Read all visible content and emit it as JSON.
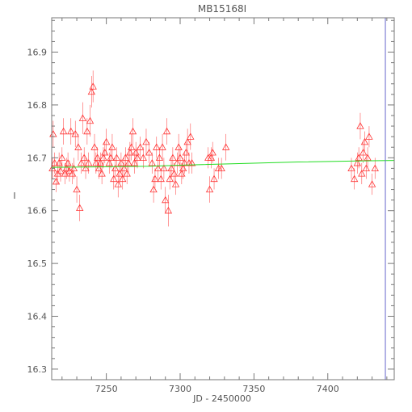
{
  "chart_data": {
    "type": "scatter",
    "title": "MB15168I",
    "xlabel": "JD - 2450000",
    "ylabel": "I",
    "xlim": [
      7213,
      7445
    ],
    "ylim": [
      16.965,
      16.28
    ],
    "y_inverted": true,
    "x_ticks": [
      7250,
      7300,
      7350,
      7400
    ],
    "x_tick_labels": [
      "7250",
      "7300",
      "7350",
      "7400"
    ],
    "y_ticks": [
      16.3,
      16.4,
      16.5,
      16.6,
      16.7,
      16.8,
      16.9
    ],
    "y_tick_labels": [
      "16.3",
      "16.4",
      "16.5",
      "16.6",
      "16.7",
      "16.8",
      "16.9"
    ],
    "grid": false,
    "marker": "triangle",
    "colors": {
      "data": "#ff3333",
      "model": "#22dd22",
      "vline": "#6666cc",
      "axes": "#777777"
    },
    "vertical_line_x": 7439,
    "model_curve": [
      {
        "x": 7213,
        "y": 16.682
      },
      {
        "x": 7250,
        "y": 16.683
      },
      {
        "x": 7280,
        "y": 16.684
      },
      {
        "x": 7300,
        "y": 16.686
      },
      {
        "x": 7340,
        "y": 16.689
      },
      {
        "x": 7380,
        "y": 16.692
      },
      {
        "x": 7420,
        "y": 16.694
      },
      {
        "x": 7445,
        "y": 16.695
      }
    ],
    "points": [
      {
        "x": 7213.5,
        "y": 16.68,
        "err": 0.02
      },
      {
        "x": 7214,
        "y": 16.745,
        "err": 0.025
      },
      {
        "x": 7215,
        "y": 16.69,
        "err": 0.02
      },
      {
        "x": 7216,
        "y": 16.655,
        "err": 0.02
      },
      {
        "x": 7217,
        "y": 16.67,
        "err": 0.02
      },
      {
        "x": 7218,
        "y": 16.69,
        "err": 0.02
      },
      {
        "x": 7219,
        "y": 16.675,
        "err": 0.02
      },
      {
        "x": 7220,
        "y": 16.7,
        "err": 0.02
      },
      {
        "x": 7221,
        "y": 16.75,
        "err": 0.025
      },
      {
        "x": 7222,
        "y": 16.67,
        "err": 0.02
      },
      {
        "x": 7223,
        "y": 16.68,
        "err": 0.02
      },
      {
        "x": 7224,
        "y": 16.69,
        "err": 0.02
      },
      {
        "x": 7225,
        "y": 16.675,
        "err": 0.02
      },
      {
        "x": 7226,
        "y": 16.75,
        "err": 0.025
      },
      {
        "x": 7227,
        "y": 16.67,
        "err": 0.02
      },
      {
        "x": 7228,
        "y": 16.68,
        "err": 0.02
      },
      {
        "x": 7229,
        "y": 16.745,
        "err": 0.025
      },
      {
        "x": 7230,
        "y": 16.64,
        "err": 0.025
      },
      {
        "x": 7231,
        "y": 16.72,
        "err": 0.025
      },
      {
        "x": 7232,
        "y": 16.605,
        "err": 0.025
      },
      {
        "x": 7233,
        "y": 16.69,
        "err": 0.02
      },
      {
        "x": 7234,
        "y": 16.775,
        "err": 0.03
      },
      {
        "x": 7235,
        "y": 16.7,
        "err": 0.02
      },
      {
        "x": 7236,
        "y": 16.68,
        "err": 0.02
      },
      {
        "x": 7237,
        "y": 16.75,
        "err": 0.025
      },
      {
        "x": 7238,
        "y": 16.69,
        "err": 0.02
      },
      {
        "x": 7239,
        "y": 16.77,
        "err": 0.03
      },
      {
        "x": 7240,
        "y": 16.825,
        "err": 0.03
      },
      {
        "x": 7241,
        "y": 16.835,
        "err": 0.03
      },
      {
        "x": 7242,
        "y": 16.72,
        "err": 0.025
      },
      {
        "x": 7243,
        "y": 16.69,
        "err": 0.02
      },
      {
        "x": 7244,
        "y": 16.7,
        "err": 0.02
      },
      {
        "x": 7245,
        "y": 16.68,
        "err": 0.02
      },
      {
        "x": 7246,
        "y": 16.69,
        "err": 0.02
      },
      {
        "x": 7247,
        "y": 16.67,
        "err": 0.02
      },
      {
        "x": 7248,
        "y": 16.7,
        "err": 0.02
      },
      {
        "x": 7249,
        "y": 16.71,
        "err": 0.02
      },
      {
        "x": 7250,
        "y": 16.73,
        "err": 0.025
      },
      {
        "x": 7252,
        "y": 16.69,
        "err": 0.02
      },
      {
        "x": 7253,
        "y": 16.7,
        "err": 0.02
      },
      {
        "x": 7254,
        "y": 16.72,
        "err": 0.025
      },
      {
        "x": 7255,
        "y": 16.66,
        "err": 0.02
      },
      {
        "x": 7256,
        "y": 16.68,
        "err": 0.02
      },
      {
        "x": 7257,
        "y": 16.7,
        "err": 0.02
      },
      {
        "x": 7258,
        "y": 16.65,
        "err": 0.025
      },
      {
        "x": 7259,
        "y": 16.67,
        "err": 0.02
      },
      {
        "x": 7260,
        "y": 16.69,
        "err": 0.02
      },
      {
        "x": 7261,
        "y": 16.66,
        "err": 0.02
      },
      {
        "x": 7262,
        "y": 16.68,
        "err": 0.02
      },
      {
        "x": 7263,
        "y": 16.7,
        "err": 0.02
      },
      {
        "x": 7264,
        "y": 16.67,
        "err": 0.02
      },
      {
        "x": 7265,
        "y": 16.69,
        "err": 0.02
      },
      {
        "x": 7266,
        "y": 16.71,
        "err": 0.02
      },
      {
        "x": 7267,
        "y": 16.72,
        "err": 0.025
      },
      {
        "x": 7268,
        "y": 16.75,
        "err": 0.025
      },
      {
        "x": 7269,
        "y": 16.69,
        "err": 0.02
      },
      {
        "x": 7270,
        "y": 16.71,
        "err": 0.02
      },
      {
        "x": 7271,
        "y": 16.7,
        "err": 0.02
      },
      {
        "x": 7273,
        "y": 16.72,
        "err": 0.02
      },
      {
        "x": 7275,
        "y": 16.7,
        "err": 0.02
      },
      {
        "x": 7277,
        "y": 16.73,
        "err": 0.025
      },
      {
        "x": 7279,
        "y": 16.71,
        "err": 0.02
      },
      {
        "x": 7281,
        "y": 16.69,
        "err": 0.02
      },
      {
        "x": 7282,
        "y": 16.64,
        "err": 0.025
      },
      {
        "x": 7283,
        "y": 16.66,
        "err": 0.02
      },
      {
        "x": 7284,
        "y": 16.72,
        "err": 0.02
      },
      {
        "x": 7285,
        "y": 16.68,
        "err": 0.02
      },
      {
        "x": 7286,
        "y": 16.7,
        "err": 0.02
      },
      {
        "x": 7287,
        "y": 16.66,
        "err": 0.02
      },
      {
        "x": 7288,
        "y": 16.72,
        "err": 0.025
      },
      {
        "x": 7289,
        "y": 16.68,
        "err": 0.02
      },
      {
        "x": 7290,
        "y": 16.62,
        "err": 0.025
      },
      {
        "x": 7291,
        "y": 16.75,
        "err": 0.025
      },
      {
        "x": 7292,
        "y": 16.6,
        "err": 0.03
      },
      {
        "x": 7293,
        "y": 16.66,
        "err": 0.02
      },
      {
        "x": 7294,
        "y": 16.68,
        "err": 0.02
      },
      {
        "x": 7295,
        "y": 16.7,
        "err": 0.02
      },
      {
        "x": 7296,
        "y": 16.67,
        "err": 0.02
      },
      {
        "x": 7297,
        "y": 16.65,
        "err": 0.02
      },
      {
        "x": 7298,
        "y": 16.69,
        "err": 0.02
      },
      {
        "x": 7299,
        "y": 16.72,
        "err": 0.025
      },
      {
        "x": 7300,
        "y": 16.7,
        "err": 0.02
      },
      {
        "x": 7301,
        "y": 16.67,
        "err": 0.02
      },
      {
        "x": 7302,
        "y": 16.68,
        "err": 0.02
      },
      {
        "x": 7303,
        "y": 16.69,
        "err": 0.02
      },
      {
        "x": 7304,
        "y": 16.71,
        "err": 0.02
      },
      {
        "x": 7305,
        "y": 16.73,
        "err": 0.025
      },
      {
        "x": 7306,
        "y": 16.69,
        "err": 0.02
      },
      {
        "x": 7307,
        "y": 16.74,
        "err": 0.025
      },
      {
        "x": 7308,
        "y": 16.69,
        "err": 0.02
      },
      {
        "x": 7319,
        "y": 16.7,
        "err": 0.02
      },
      {
        "x": 7320,
        "y": 16.64,
        "err": 0.025
      },
      {
        "x": 7321,
        "y": 16.7,
        "err": 0.02
      },
      {
        "x": 7322,
        "y": 16.71,
        "err": 0.02
      },
      {
        "x": 7323,
        "y": 16.66,
        "err": 0.02
      },
      {
        "x": 7326,
        "y": 16.68,
        "err": 0.02
      },
      {
        "x": 7328,
        "y": 16.68,
        "err": 0.02
      },
      {
        "x": 7331,
        "y": 16.72,
        "err": 0.025
      },
      {
        "x": 7416,
        "y": 16.68,
        "err": 0.02
      },
      {
        "x": 7418,
        "y": 16.66,
        "err": 0.02
      },
      {
        "x": 7420,
        "y": 16.69,
        "err": 0.02
      },
      {
        "x": 7421,
        "y": 16.7,
        "err": 0.02
      },
      {
        "x": 7422,
        "y": 16.76,
        "err": 0.025
      },
      {
        "x": 7423,
        "y": 16.67,
        "err": 0.02
      },
      {
        "x": 7424,
        "y": 16.71,
        "err": 0.02
      },
      {
        "x": 7425,
        "y": 16.73,
        "err": 0.02
      },
      {
        "x": 7426,
        "y": 16.68,
        "err": 0.02
      },
      {
        "x": 7427,
        "y": 16.7,
        "err": 0.02
      },
      {
        "x": 7428,
        "y": 16.74,
        "err": 0.02
      },
      {
        "x": 7430,
        "y": 16.65,
        "err": 0.02
      },
      {
        "x": 7432,
        "y": 16.68,
        "err": 0.02
      }
    ]
  }
}
